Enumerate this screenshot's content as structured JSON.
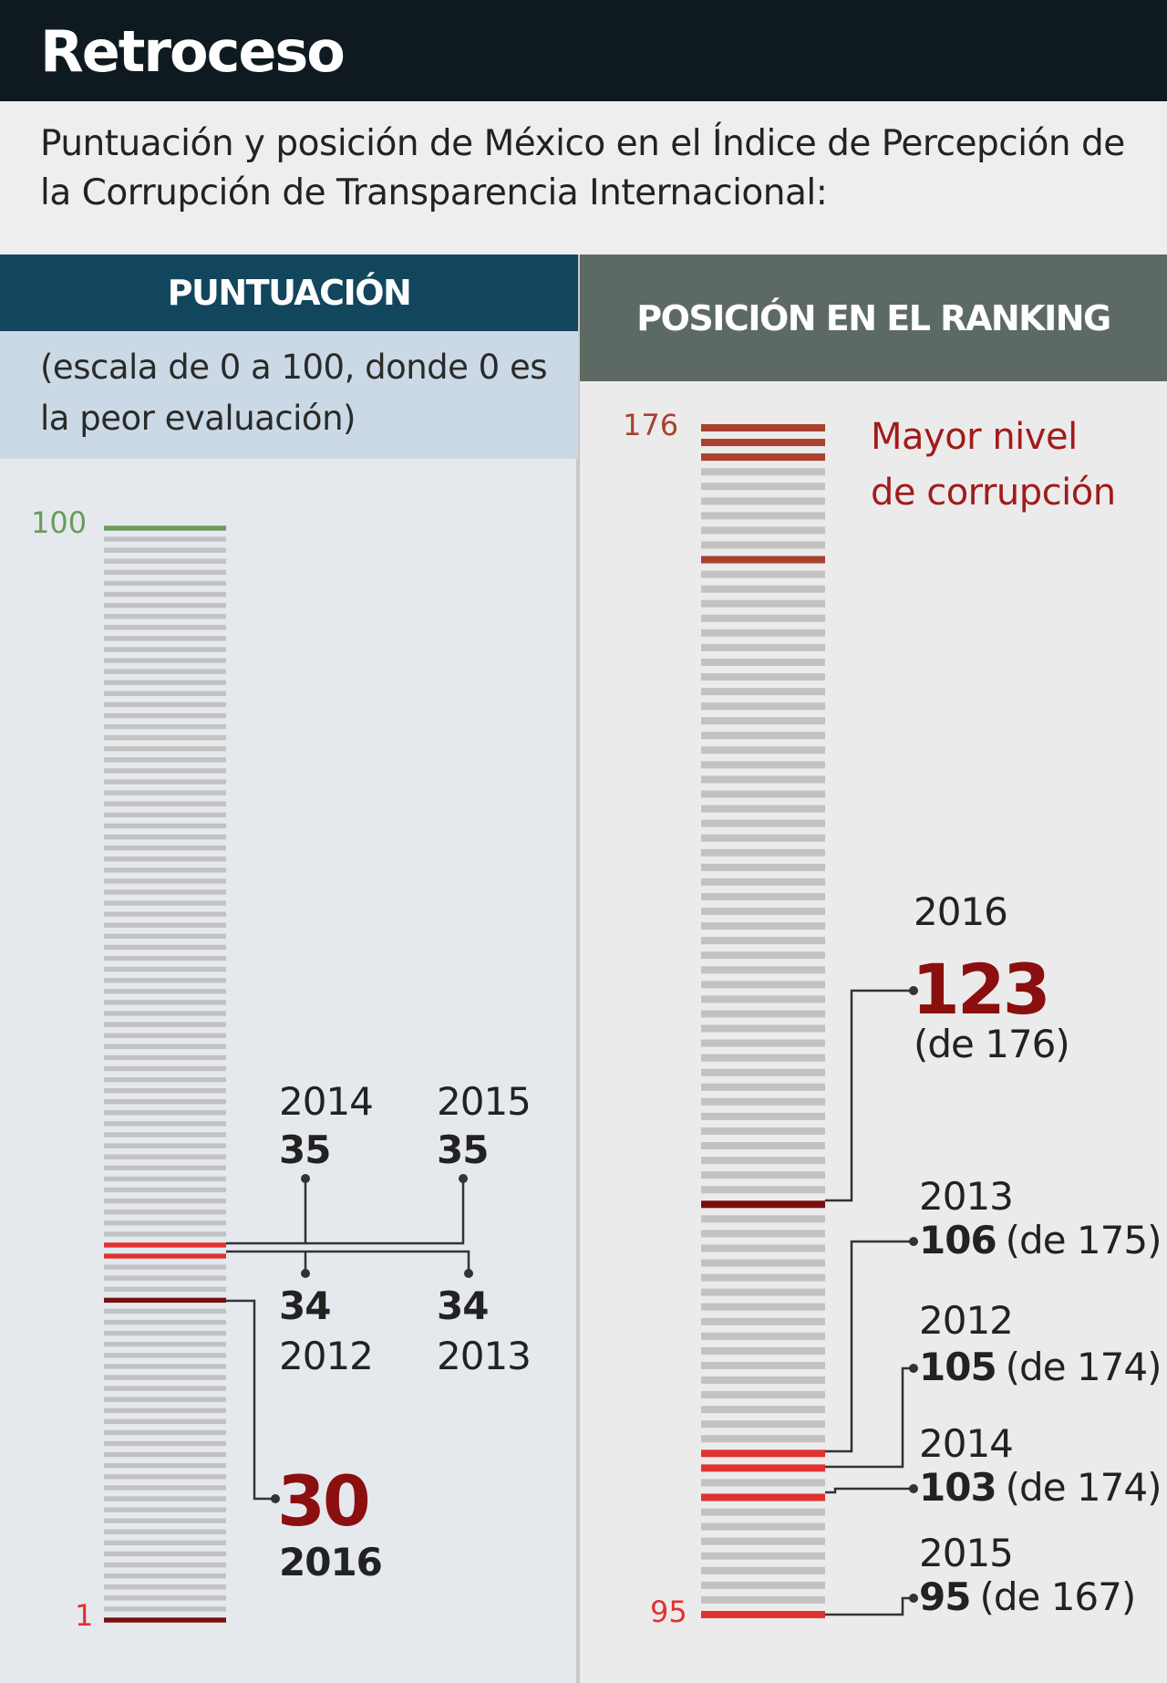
{
  "title": "Retroceso",
  "intro": "Puntuación y posición de México en el Índice de Percepción de la Corrupción de Transparencia Internacional:",
  "left_header": "PUNTUACIÓN",
  "left_subheader": "(escala de 0 a 100, donde 0 es la peor evaluación)",
  "right_header": "POSICIÓN EN EL RANKING",
  "right_note_line1": "Mayor nivel",
  "right_note_line2": "de corrupción",
  "colors": {
    "header_bg": "#0f1a20",
    "left_header_bg": "#11465d",
    "left_sub_bg": "#cad9e5",
    "right_header_bg": "#5d6a64",
    "bar_neutral": "#c2c2c2",
    "bar_top": "#6a9b5d",
    "bar_red": "#e0322f",
    "bar_dark_red": "#7a0f0f",
    "bar_brown": "#a8412e",
    "accent_red": "#8b0f0f"
  },
  "chart_data": [
    {
      "type": "bar",
      "name": "puntuacion",
      "axis": {
        "min": 1,
        "max": 100,
        "min_label": "1",
        "max_label": "100"
      },
      "points": [
        {
          "year": "2012",
          "value": 34
        },
        {
          "year": "2013",
          "value": 34
        },
        {
          "year": "2014",
          "value": 35
        },
        {
          "year": "2015",
          "value": 35
        },
        {
          "year": "2016",
          "value": 30
        }
      ],
      "labels": {
        "y2014": "2014",
        "v2014": "35",
        "y2015": "2015",
        "v2015": "35",
        "y2012": "2012",
        "v2012": "34",
        "y2013": "2013",
        "v2013": "34",
        "y2016": "2016",
        "v2016": "30"
      }
    },
    {
      "type": "bar",
      "name": "posicion",
      "axis": {
        "min": 95,
        "max": 176,
        "min_label": "95",
        "max_label": "176"
      },
      "points": [
        {
          "year": "2016",
          "rank": 123,
          "of": 176
        },
        {
          "year": "2013",
          "rank": 106,
          "of": 175
        },
        {
          "year": "2012",
          "rank": 105,
          "of": 174
        },
        {
          "year": "2014",
          "rank": 103,
          "of": 174
        },
        {
          "year": "2015",
          "rank": 95,
          "of": 167
        }
      ],
      "labels": {
        "y2016": "2016",
        "v2016": "123",
        "o2016": "(de 176)",
        "y2013": "2013",
        "v2013": "106",
        "o2013": "(de 175)",
        "y2012": "2012",
        "v2012": "105",
        "o2012": "(de 174)",
        "y2014": "2014",
        "v2014": "103",
        "o2014": "(de 174)",
        "y2015": "2015",
        "v2015": "95",
        "o2015": "(de 167)"
      }
    }
  ]
}
